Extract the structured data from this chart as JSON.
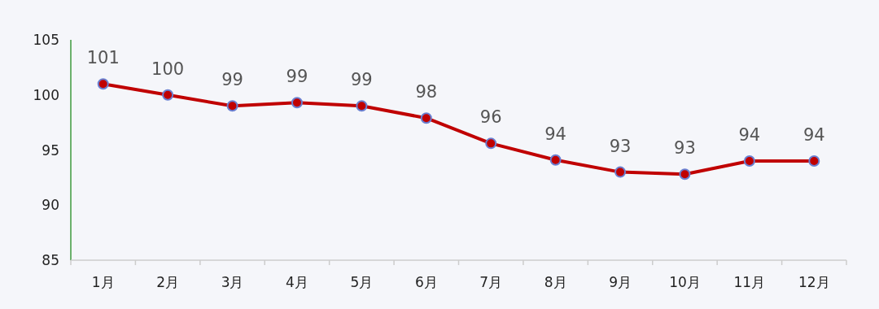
{
  "chart_data": {
    "type": "line",
    "categories": [
      "1月",
      "2月",
      "3月",
      "4月",
      "5月",
      "6月",
      "7月",
      "8月",
      "9月",
      "10月",
      "11月",
      "12月"
    ],
    "series": [
      {
        "color": "#c00000",
        "values": [
          101.0,
          100.0,
          99.0,
          99.3,
          99.0,
          97.9,
          95.6,
          94.1,
          93.0,
          92.8,
          94.0,
          94.0
        ],
        "value_labels": [
          "101",
          "100",
          "99",
          "99",
          "99",
          "98",
          "96",
          "94",
          "93",
          "93",
          "94",
          "94"
        ]
      }
    ],
    "ylim": [
      85,
      105
    ],
    "yticks": [
      85,
      90,
      95,
      100,
      105
    ],
    "marker": "circle",
    "line_style": "solid",
    "grid": false
  }
}
